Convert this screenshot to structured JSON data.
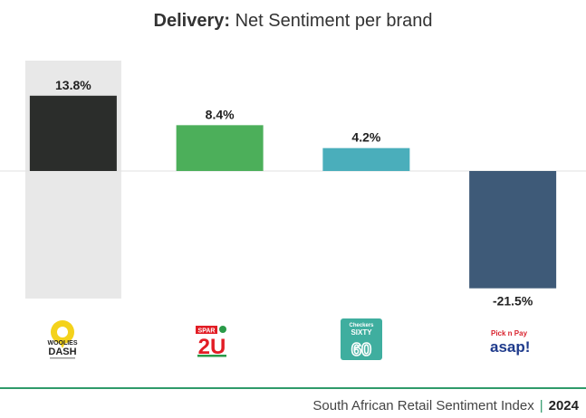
{
  "title_bold": "Delivery:",
  "title_rest": " Net Sentiment per brand",
  "chart_data": {
    "type": "bar",
    "categories": [
      "Woolies Dash",
      "Checkers Sixty60",
      "Spar 2U",
      "Pick n Pay asap!"
    ],
    "values": [
      13.8,
      8.4,
      4.2,
      -21.5
    ],
    "value_labels": [
      "13.8%",
      "8.4%",
      "4.2%",
      "-21.5%"
    ],
    "colors": [
      "#2b2d2b",
      "#4caf5a",
      "#4aaebb",
      "#3e5a78"
    ],
    "highlight_index": 0,
    "highlight_color": "#e8e8e8",
    "title": "Delivery: Net Sentiment per brand",
    "xlabel": "",
    "ylabel": "",
    "ylim": [
      -23,
      20
    ]
  },
  "logos": {
    "woolies_top": "WOOLIES",
    "woolies_bottom": "DASH",
    "spar_badge": "SPAR",
    "spar_text": "2U",
    "sixty_top": "Checkers",
    "sixty_mid": "SIXTY",
    "sixty_num": "60",
    "pnp_top": "Pick n Pay",
    "pnp_bottom": "asap!"
  },
  "footer": {
    "text": "South African Retail Sentiment Index",
    "separator": "|",
    "year": "2024"
  }
}
